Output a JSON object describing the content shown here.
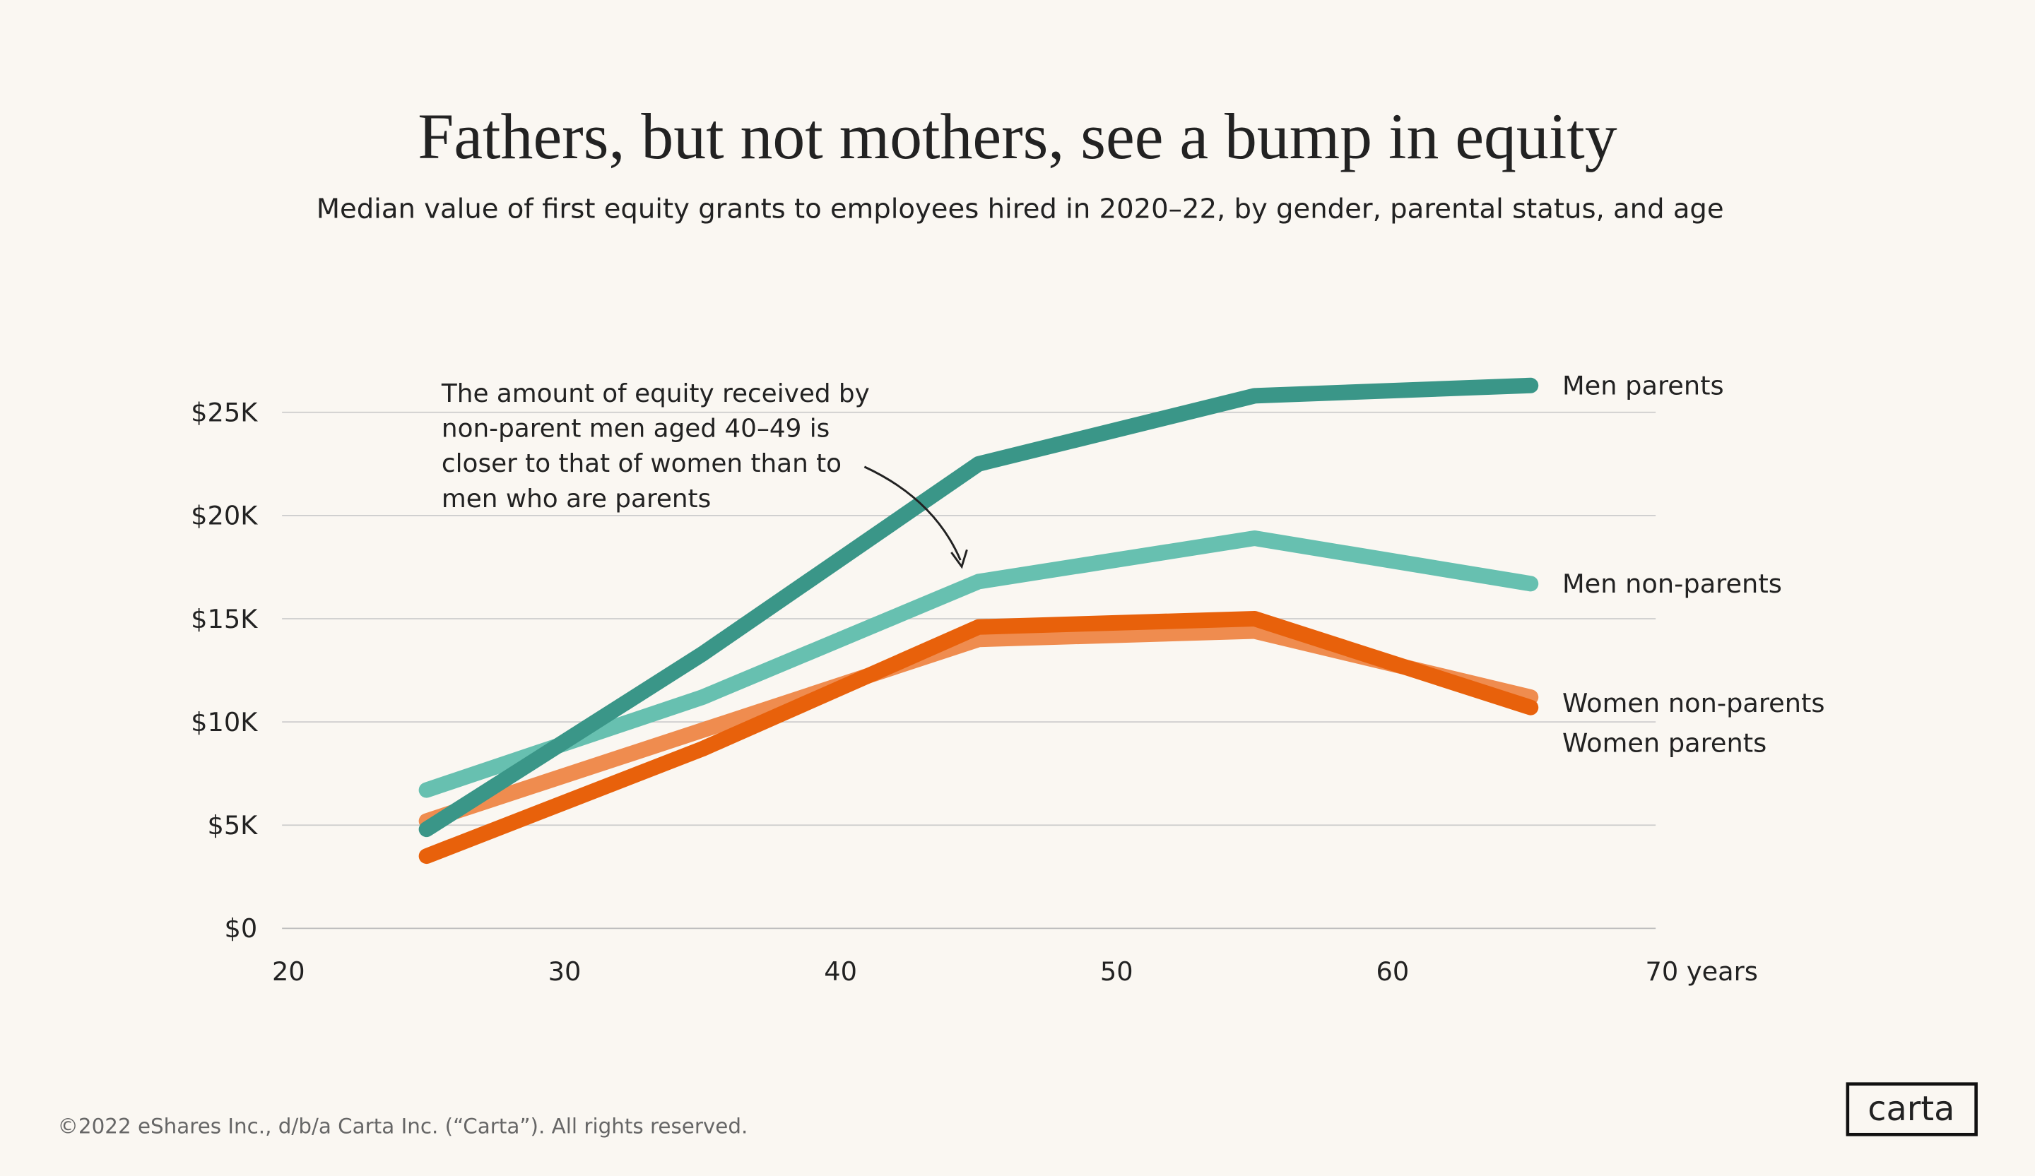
{
  "chart_data": {
    "type": "line",
    "title": "Fathers, but not mothers, see a bump in equity",
    "subtitle": "Median value of first equity grants to employees hired in 2020–22, by gender, parental status, and age",
    "x": [
      25,
      35,
      45,
      55,
      65
    ],
    "xlim": [
      20,
      70
    ],
    "xticks": [
      20,
      30,
      40,
      50,
      60,
      {
        "value": 70,
        "label": "70 years"
      }
    ],
    "ylim": [
      0,
      26500
    ],
    "yticks": [
      {
        "value": 0,
        "label": "$0"
      },
      {
        "value": 5000,
        "label": "$5K"
      },
      {
        "value": 10000,
        "label": "$10K"
      },
      {
        "value": 15000,
        "label": "$15K"
      },
      {
        "value": 20000,
        "label": "$20K"
      },
      {
        "value": 25000,
        "label": "$25K"
      }
    ],
    "grid": true,
    "series": [
      {
        "name": "Men non-parents",
        "color": "#67c0b0",
        "values": [
          6700,
          11200,
          16800,
          18900,
          16700
        ]
      },
      {
        "name": "Women non-parents",
        "color": "#ef8c4f",
        "values": [
          5200,
          9600,
          14000,
          14400,
          11200
        ]
      },
      {
        "name": "Women parents",
        "color": "#e8610b",
        "values": [
          3500,
          8700,
          14600,
          15000,
          10700
        ]
      },
      {
        "name": "Men parents",
        "color": "#3a9688",
        "values": [
          4800,
          13300,
          22500,
          25800,
          26300
        ]
      }
    ],
    "annotation": [
      "The amount of equity received by",
      "non-parent men aged 40–49 is",
      "closer to that of women than to",
      "men who are parents"
    ]
  },
  "footer": "©2022 eShares Inc., d/b/a Carta Inc. (“Carta”). All rights reserved.",
  "logo": "carta"
}
